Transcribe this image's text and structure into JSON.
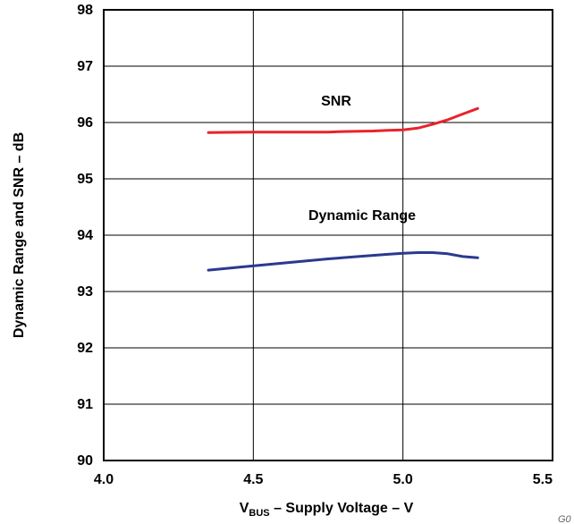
{
  "chart_data": {
    "type": "line",
    "xlabel_main": "V",
    "xlabel_sub": "BUS",
    "xlabel_rest": " – Supply Voltage – V",
    "ylabel": "Dynamic Range and SNR – dB",
    "xlim": [
      4.0,
      5.5
    ],
    "ylim": [
      90,
      98
    ],
    "xticks": [
      "4.0",
      "4.5",
      "5.0",
      "5.5"
    ],
    "yticks": [
      "90",
      "91",
      "92",
      "93",
      "94",
      "95",
      "96",
      "97",
      "98"
    ],
    "grid": true,
    "series": [
      {
        "name": "SNR",
        "color": "#e8232a",
        "x": [
          4.35,
          4.5,
          4.6,
          4.7,
          4.75,
          4.8,
          4.9,
          4.95,
          5.0,
          5.05,
          5.1,
          5.15,
          5.2,
          5.25
        ],
        "y": [
          95.82,
          95.83,
          95.83,
          95.83,
          95.83,
          95.84,
          95.85,
          95.86,
          95.87,
          95.9,
          95.97,
          96.05,
          96.15,
          96.25
        ]
      },
      {
        "name": "Dynamic Range",
        "color": "#2b3990",
        "x": [
          4.35,
          4.45,
          4.55,
          4.65,
          4.75,
          4.85,
          4.95,
          5.0,
          5.05,
          5.1,
          5.15,
          5.2,
          5.25
        ],
        "y": [
          93.38,
          93.43,
          93.48,
          93.53,
          93.58,
          93.62,
          93.66,
          93.68,
          93.69,
          93.69,
          93.67,
          93.62,
          93.6
        ]
      }
    ]
  },
  "corner_code": "G0"
}
